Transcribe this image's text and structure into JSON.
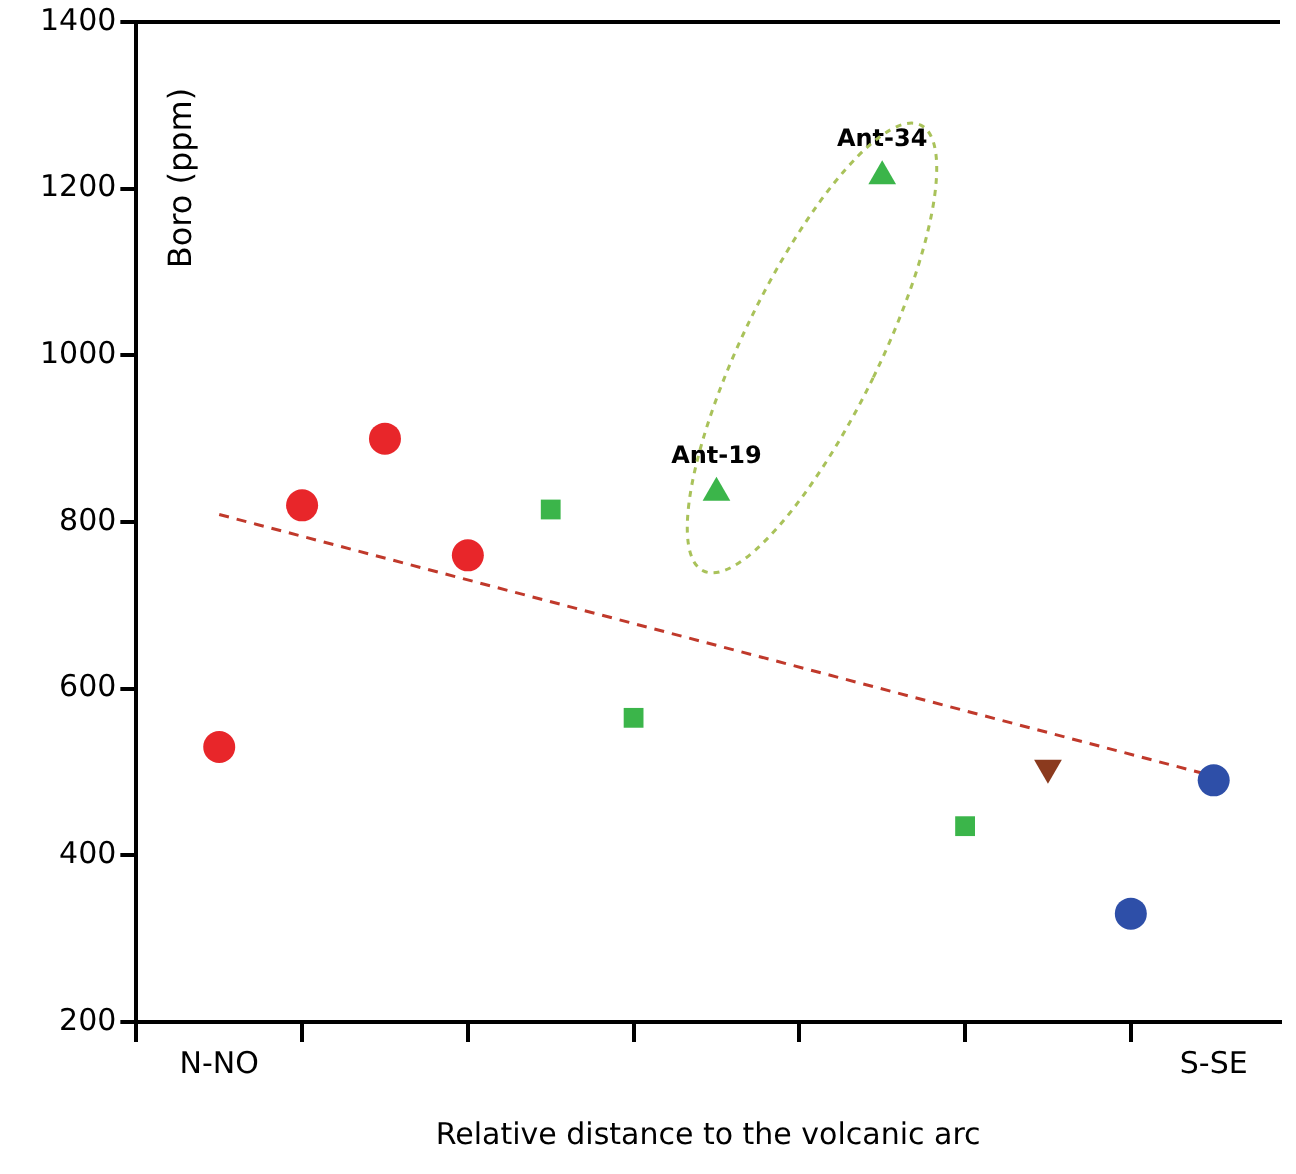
{
  "chart_data": {
    "type": "scatter",
    "xlabel": "Relative distance to the volcanic arc",
    "ylabel": "Boro (ppm)",
    "categories": [
      "N-NO",
      null,
      null,
      null,
      null,
      null,
      null,
      null,
      null,
      null,
      null,
      null,
      "S-SE"
    ],
    "ylim": [
      200,
      1400
    ],
    "yticks": [
      200,
      400,
      600,
      800,
      1000,
      1200,
      1400
    ],
    "legend": false,
    "series": [
      {
        "type": "scatter",
        "color": "#e8262a",
        "marker": "circle",
        "values": [
          530,
          820,
          900,
          760,
          null,
          null,
          null,
          null,
          null,
          null,
          null,
          null,
          null
        ]
      },
      {
        "type": "scatter",
        "color": "#3bb54a",
        "marker": "square",
        "values": [
          null,
          null,
          null,
          null,
          815,
          565,
          null,
          null,
          null,
          435,
          null,
          null,
          null
        ]
      },
      {
        "type": "scatter",
        "color": "#3bb54a",
        "marker": "triangle",
        "values": [
          null,
          null,
          null,
          null,
          null,
          null,
          835,
          null,
          1215,
          null,
          null,
          null,
          null
        ]
      },
      {
        "type": "scatter",
        "color": "#8b3a1e",
        "marker": "triangle_down",
        "values": [
          null,
          null,
          null,
          null,
          null,
          null,
          null,
          null,
          null,
          null,
          505,
          null,
          null
        ]
      },
      {
        "type": "scatter",
        "color": "#2e4fa8",
        "marker": "circle",
        "values": [
          null,
          null,
          null,
          null,
          null,
          null,
          null,
          null,
          null,
          null,
          null,
          330,
          490
        ]
      },
      {
        "type": "line",
        "color": "#c0392b",
        "marker": "none",
        "line_style": "dashed",
        "values": [
          809,
          null,
          null,
          null,
          null,
          null,
          null,
          null,
          null,
          null,
          null,
          null,
          495
        ]
      }
    ],
    "annotations": [
      {
        "text": "Ant-19",
        "y": 835
      },
      {
        "text": "Ant-34",
        "y": 1215
      }
    ]
  }
}
